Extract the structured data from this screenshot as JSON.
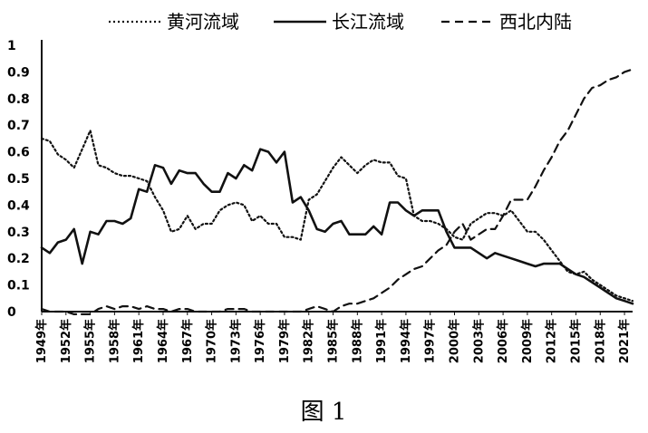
{
  "figure": {
    "caption": "图 1"
  },
  "chart_data": {
    "type": "line",
    "xlabel": "",
    "ylabel": "",
    "ylim": [
      0,
      1
    ],
    "yticks": [
      "0",
      "0.1",
      "0.2",
      "0.3",
      "0.4",
      "0.5",
      "0.6",
      "0.7",
      "0.8",
      "0.9",
      "1"
    ],
    "xlim": [
      1949,
      2022
    ],
    "x_tick_labels": [
      "1949年",
      "1952年",
      "1955年",
      "1958年",
      "1961年",
      "1964年",
      "1967年",
      "1970年",
      "1973年",
      "1976年",
      "1979年",
      "1982年",
      "1985年",
      "1988年",
      "1991年",
      "1994年",
      "1997年",
      "2000年",
      "2003年",
      "2006年",
      "2009年",
      "2012年",
      "2015年",
      "2018年",
      "2021年"
    ],
    "legend_position": "top",
    "grid": false,
    "series": [
      {
        "name": "黄河流域",
        "style": "dotted",
        "color": "#111111",
        "x": [
          1949,
          1950,
          1951,
          1952,
          1953,
          1954,
          1955,
          1956,
          1957,
          1958,
          1959,
          1960,
          1961,
          1962,
          1963,
          1964,
          1965,
          1966,
          1967,
          1968,
          1969,
          1970,
          1971,
          1972,
          1973,
          1974,
          1975,
          1976,
          1977,
          1978,
          1979,
          1980,
          1981,
          1982,
          1983,
          1984,
          1985,
          1986,
          1987,
          1988,
          1989,
          1990,
          1991,
          1992,
          1993,
          1994,
          1995,
          1996,
          1997,
          1998,
          1999,
          2000,
          2001,
          2002,
          2003,
          2004,
          2005,
          2006,
          2007,
          2008,
          2009,
          2010,
          2011,
          2012,
          2013,
          2014,
          2015,
          2016,
          2017,
          2018,
          2019,
          2020,
          2021,
          2022
        ],
        "values": [
          0.65,
          0.64,
          0.59,
          0.57,
          0.54,
          0.61,
          0.68,
          0.55,
          0.54,
          0.52,
          0.51,
          0.51,
          0.5,
          0.49,
          0.43,
          0.38,
          0.3,
          0.31,
          0.36,
          0.31,
          0.33,
          0.33,
          0.38,
          0.4,
          0.41,
          0.4,
          0.34,
          0.36,
          0.33,
          0.33,
          0.28,
          0.28,
          0.27,
          0.42,
          0.44,
          0.49,
          0.54,
          0.58,
          0.55,
          0.52,
          0.55,
          0.57,
          0.56,
          0.56,
          0.51,
          0.5,
          0.36,
          0.34,
          0.34,
          0.33,
          0.31,
          0.28,
          0.27,
          0.33,
          0.35,
          0.37,
          0.37,
          0.36,
          0.38,
          0.34,
          0.3,
          0.3,
          0.27,
          0.23,
          0.19,
          0.15,
          0.14,
          0.15,
          0.12,
          0.1,
          0.08,
          0.06,
          0.05,
          0.04
        ]
      },
      {
        "name": "长江流域",
        "style": "solid",
        "color": "#111111",
        "x": [
          1949,
          1950,
          1951,
          1952,
          1953,
          1954,
          1955,
          1956,
          1957,
          1958,
          1959,
          1960,
          1961,
          1962,
          1963,
          1964,
          1965,
          1966,
          1967,
          1968,
          1969,
          1970,
          1971,
          1972,
          1973,
          1974,
          1975,
          1976,
          1977,
          1978,
          1979,
          1980,
          1981,
          1982,
          1983,
          1984,
          1985,
          1986,
          1987,
          1988,
          1989,
          1990,
          1991,
          1992,
          1993,
          1994,
          1995,
          1996,
          1997,
          1998,
          1999,
          2000,
          2001,
          2002,
          2003,
          2004,
          2005,
          2006,
          2007,
          2008,
          2009,
          2010,
          2011,
          2012,
          2013,
          2014,
          2015,
          2016,
          2017,
          2018,
          2019,
          2020,
          2021,
          2022
        ],
        "values": [
          0.24,
          0.22,
          0.26,
          0.27,
          0.31,
          0.18,
          0.3,
          0.29,
          0.34,
          0.34,
          0.33,
          0.35,
          0.46,
          0.45,
          0.55,
          0.54,
          0.48,
          0.53,
          0.52,
          0.52,
          0.48,
          0.45,
          0.45,
          0.52,
          0.5,
          0.55,
          0.53,
          0.61,
          0.6,
          0.56,
          0.6,
          0.41,
          0.43,
          0.38,
          0.31,
          0.3,
          0.33,
          0.34,
          0.29,
          0.29,
          0.29,
          0.32,
          0.29,
          0.41,
          0.41,
          0.38,
          0.36,
          0.38,
          0.38,
          0.38,
          0.3,
          0.24,
          0.24,
          0.24,
          0.22,
          0.2,
          0.22,
          0.21,
          0.2,
          0.19,
          0.18,
          0.17,
          0.18,
          0.18,
          0.18,
          0.16,
          0.14,
          0.13,
          0.11,
          0.09,
          0.07,
          0.05,
          0.04,
          0.03
        ]
      },
      {
        "name": "西北内陆",
        "style": "dashed",
        "color": "#111111",
        "x": [
          1949,
          1950,
          1951,
          1952,
          1953,
          1954,
          1955,
          1956,
          1957,
          1958,
          1959,
          1960,
          1961,
          1962,
          1963,
          1964,
          1965,
          1966,
          1967,
          1968,
          1969,
          1970,
          1971,
          1972,
          1973,
          1974,
          1975,
          1976,
          1977,
          1978,
          1979,
          1980,
          1981,
          1982,
          1983,
          1984,
          1985,
          1986,
          1987,
          1988,
          1989,
          1990,
          1991,
          1992,
          1993,
          1994,
          1995,
          1996,
          1997,
          1998,
          1999,
          2000,
          2001,
          2002,
          2003,
          2004,
          2005,
          2006,
          2007,
          2008,
          2009,
          2010,
          2011,
          2012,
          2013,
          2014,
          2015,
          2016,
          2017,
          2018,
          2019,
          2020,
          2021,
          2022
        ],
        "values": [
          0.01,
          0.0,
          0.0,
          0.0,
          -0.01,
          -0.01,
          -0.01,
          0.01,
          0.02,
          0.01,
          0.02,
          0.02,
          0.01,
          0.02,
          0.01,
          0.01,
          0.0,
          0.01,
          0.01,
          0.0,
          0.0,
          0.0,
          0.0,
          0.01,
          0.01,
          0.01,
          0.0,
          0.0,
          0.0,
          0.0,
          0.0,
          0.0,
          0.0,
          0.01,
          0.02,
          0.01,
          0.0,
          0.02,
          0.03,
          0.03,
          0.04,
          0.05,
          0.07,
          0.09,
          0.12,
          0.14,
          0.16,
          0.17,
          0.2,
          0.23,
          0.25,
          0.3,
          0.33,
          0.27,
          0.29,
          0.31,
          0.31,
          0.36,
          0.42,
          0.42,
          0.42,
          0.47,
          0.53,
          0.58,
          0.64,
          0.68,
          0.74,
          0.8,
          0.84,
          0.85,
          0.87,
          0.88,
          0.9,
          0.91
        ]
      }
    ]
  }
}
